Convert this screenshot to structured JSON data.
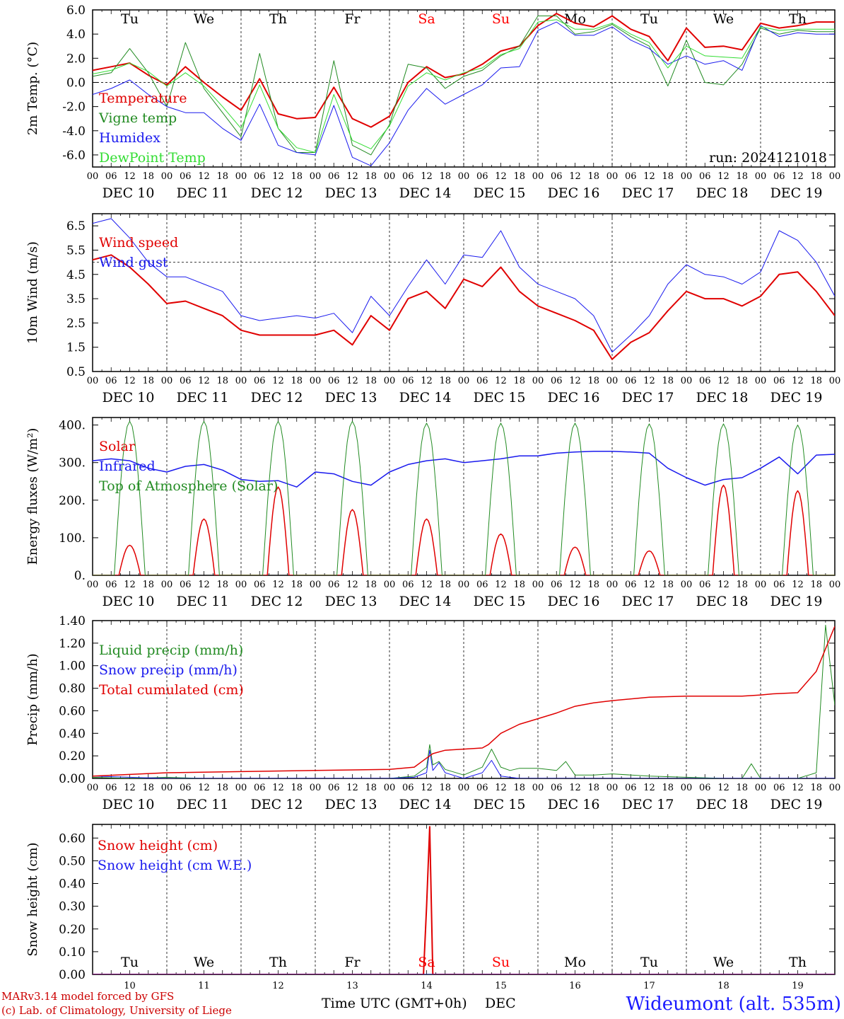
{
  "colors": {
    "weekday": "#000000",
    "weekend": "#ff0000",
    "red": "#e00000",
    "green": "#228b22",
    "blue": "#1a1aee",
    "lightgreen": "#33dd33"
  },
  "days": {
    "abbr": [
      "Tu",
      "We",
      "Th",
      "Fr",
      "Sa",
      "Su",
      "Mo",
      "Tu",
      "We",
      "Th"
    ],
    "weekend": [
      false,
      false,
      false,
      false,
      true,
      true,
      false,
      false,
      false,
      false
    ],
    "dates": [
      "DEC 10",
      "DEC 11",
      "DEC 12",
      "DEC 13",
      "DEC 14",
      "DEC 15",
      "DEC 16",
      "DEC 17",
      "DEC 18",
      "DEC 19"
    ],
    "numbers": [
      "10",
      "11",
      "12",
      "13",
      "14",
      "15",
      "16",
      "17",
      "18",
      "19"
    ],
    "hour_ticks": [
      "00",
      "06",
      "12",
      "18"
    ],
    "final_tick": "00"
  },
  "run_label": "run: 2024121018",
  "footer": {
    "model_line": "MARv3.14 model forced by GFS",
    "credit_line": "(c) Lab. of Climatology, University of Liege",
    "x_axis_title": "Time UTC (GMT+0h)",
    "x_axis_unit": "DEC",
    "station": "Wideumont (alt. 535m)"
  },
  "chart_data": [
    {
      "type": "line",
      "ylabel": "2m Temp. (°C)",
      "ylim": [
        -7,
        6
      ],
      "yticks": [
        -6,
        -4,
        -2,
        0,
        2,
        4,
        6
      ],
      "ytick_labels": [
        "-6.0",
        "-4.0",
        "-2.0",
        "0.0",
        "2.0",
        "4.0",
        "6.0"
      ],
      "ref_line": 0,
      "x_unit": "hours since DEC 10 00 UTC",
      "series": [
        {
          "name": "Temperature",
          "color": "#e00000",
          "width": 2,
          "x": [
            0,
            6,
            12,
            18,
            24,
            30,
            36,
            42,
            48,
            54,
            60,
            66,
            72,
            78,
            84,
            90,
            96,
            102,
            108,
            114,
            120,
            126,
            132,
            138,
            144,
            150,
            156,
            162,
            168,
            174,
            180,
            186,
            192,
            198,
            204,
            210,
            216,
            222,
            228,
            234,
            240
          ],
          "y": [
            1.0,
            1.3,
            1.6,
            0.6,
            -0.2,
            1.3,
            0.0,
            -1.2,
            -2.3,
            0.3,
            -2.6,
            -3.0,
            -2.9,
            -0.4,
            -3.0,
            -3.7,
            -2.8,
            0.0,
            1.3,
            0.4,
            0.7,
            1.5,
            2.6,
            3.0,
            4.7,
            5.7,
            4.9,
            4.6,
            5.5,
            4.4,
            3.8,
            1.8,
            4.5,
            2.9,
            3.0,
            2.7,
            4.9,
            4.5,
            4.7,
            5.0,
            5.0
          ]
        },
        {
          "name": "Vigne temp",
          "color": "#228b22",
          "width": 1,
          "x": [
            0,
            6,
            12,
            18,
            24,
            30,
            36,
            42,
            48,
            54,
            60,
            66,
            72,
            78,
            84,
            90,
            96,
            102,
            108,
            114,
            120,
            126,
            132,
            138,
            144,
            150,
            156,
            162,
            168,
            174,
            180,
            186,
            192,
            198,
            204,
            210,
            216,
            222,
            228,
            234,
            240
          ],
          "y": [
            0.5,
            0.8,
            2.8,
            0.8,
            -2.0,
            3.3,
            -0.5,
            -2.5,
            -4.5,
            2.4,
            -3.8,
            -5.8,
            -5.8,
            1.8,
            -5.2,
            -6.0,
            -3.5,
            1.5,
            1.2,
            -0.5,
            0.5,
            1.0,
            2.2,
            3.0,
            5.5,
            5.5,
            4.0,
            4.2,
            4.8,
            3.8,
            3.0,
            -0.3,
            3.5,
            0.0,
            -0.2,
            1.5,
            4.5,
            4.0,
            4.3,
            4.2,
            4.2
          ]
        },
        {
          "name": "Humidex",
          "color": "#1a1aee",
          "width": 1,
          "x": [
            0,
            6,
            12,
            18,
            24,
            30,
            36,
            42,
            48,
            54,
            60,
            66,
            72,
            78,
            84,
            90,
            96,
            102,
            108,
            114,
            120,
            126,
            132,
            138,
            144,
            150,
            156,
            162,
            168,
            174,
            180,
            186,
            192,
            198,
            204,
            210,
            216,
            222,
            228,
            234,
            240
          ],
          "y": [
            -1.0,
            -0.5,
            0.2,
            -1.0,
            -2.0,
            -2.5,
            -2.5,
            -3.8,
            -4.8,
            -1.8,
            -5.2,
            -5.8,
            -6.0,
            -1.9,
            -6.2,
            -6.9,
            -5.0,
            -2.3,
            -0.5,
            -1.8,
            -1.0,
            -0.2,
            1.2,
            1.3,
            4.3,
            5.0,
            3.9,
            3.9,
            4.6,
            3.5,
            2.8,
            1.5,
            2.2,
            1.5,
            1.8,
            1.0,
            4.7,
            3.8,
            4.1,
            4.0,
            4.0
          ]
        },
        {
          "name": "DewPoint Temp",
          "color": "#33dd33",
          "width": 1,
          "x": [
            0,
            6,
            12,
            18,
            24,
            30,
            36,
            42,
            48,
            54,
            60,
            66,
            72,
            78,
            84,
            90,
            96,
            102,
            108,
            114,
            120,
            126,
            132,
            138,
            144,
            150,
            156,
            162,
            168,
            174,
            180,
            186,
            192,
            198,
            204,
            210,
            216,
            222,
            228,
            234,
            240
          ],
          "y": [
            0.7,
            1.0,
            1.6,
            0.9,
            -0.3,
            0.8,
            -0.3,
            -2.0,
            -3.8,
            -0.2,
            -3.8,
            -5.4,
            -5.8,
            -1.0,
            -4.8,
            -5.5,
            -3.6,
            -0.3,
            0.8,
            0.2,
            0.8,
            1.2,
            2.3,
            2.8,
            5.0,
            5.2,
            4.4,
            4.4,
            4.9,
            4.0,
            3.3,
            1.2,
            3.0,
            2.2,
            2.1,
            2.0,
            4.6,
            4.3,
            4.4,
            4.4,
            4.4
          ]
        }
      ]
    },
    {
      "type": "line",
      "ylabel": "10m Wind (m/s)",
      "ylim": [
        0.5,
        7.0
      ],
      "yticks": [
        0.5,
        1.5,
        2.5,
        3.5,
        4.5,
        5.5,
        6.5
      ],
      "ytick_labels": [
        "0.5",
        "1.5",
        "2.5",
        "3.5",
        "4.5",
        "5.5",
        "6.5"
      ],
      "ref_line": 5.0,
      "x_unit": "hours since DEC 10 00 UTC",
      "series": [
        {
          "name": "Wind speed",
          "color": "#e00000",
          "width": 2,
          "x": [
            0,
            6,
            12,
            18,
            24,
            30,
            36,
            42,
            48,
            54,
            60,
            66,
            72,
            78,
            84,
            90,
            96,
            102,
            108,
            114,
            120,
            126,
            132,
            138,
            144,
            150,
            156,
            162,
            168,
            174,
            180,
            186,
            192,
            198,
            204,
            210,
            216,
            222,
            228,
            234,
            240
          ],
          "y": [
            5.1,
            5.3,
            4.8,
            4.1,
            3.3,
            3.4,
            3.1,
            2.8,
            2.2,
            2.0,
            2.0,
            2.0,
            2.0,
            2.2,
            1.6,
            2.8,
            2.2,
            3.5,
            3.8,
            3.1,
            4.3,
            4.0,
            4.8,
            3.8,
            3.2,
            2.9,
            2.6,
            2.2,
            1.0,
            1.7,
            2.1,
            3.0,
            3.8,
            3.5,
            3.5,
            3.2,
            3.6,
            4.5,
            4.6,
            3.8,
            2.8
          ]
        },
        {
          "name": "Wind gust",
          "color": "#1a1aee",
          "width": 1,
          "x": [
            0,
            6,
            12,
            18,
            24,
            30,
            36,
            42,
            48,
            54,
            60,
            66,
            72,
            78,
            84,
            90,
            96,
            102,
            108,
            114,
            120,
            126,
            132,
            138,
            144,
            150,
            156,
            162,
            168,
            174,
            180,
            186,
            192,
            198,
            204,
            210,
            216,
            222,
            228,
            234,
            240
          ],
          "y": [
            6.6,
            6.8,
            6.0,
            5.0,
            4.4,
            4.4,
            4.1,
            3.8,
            2.8,
            2.6,
            2.7,
            2.8,
            2.7,
            2.9,
            2.1,
            3.6,
            2.8,
            4.0,
            5.1,
            4.1,
            5.3,
            5.2,
            6.3,
            4.8,
            4.1,
            3.8,
            3.5,
            2.8,
            1.3,
            2.0,
            2.8,
            4.1,
            4.9,
            4.5,
            4.4,
            4.1,
            4.6,
            6.3,
            5.9,
            5.0,
            3.6
          ]
        }
      ]
    },
    {
      "type": "line",
      "ylabel": "Energy fluxes (W/m²)",
      "ylim": [
        0,
        420
      ],
      "yticks": [
        0,
        100,
        200,
        300,
        400
      ],
      "ytick_labels": [
        "0.",
        "100.",
        "200.",
        "300.",
        "400."
      ],
      "x_unit": "hours since DEC 10 00 UTC",
      "series": [
        {
          "name": "Solar",
          "color": "#e00000",
          "width": 1.5,
          "peaks": [
            80,
            150,
            235,
            175,
            150,
            110,
            75,
            65,
            240,
            225
          ]
        },
        {
          "name": "Infrared",
          "color": "#1a1aee",
          "width": 1.5,
          "x": [
            0,
            6,
            12,
            18,
            24,
            30,
            36,
            42,
            48,
            54,
            60,
            66,
            72,
            78,
            84,
            90,
            96,
            102,
            108,
            114,
            120,
            126,
            132,
            138,
            144,
            150,
            156,
            162,
            168,
            174,
            180,
            186,
            192,
            198,
            204,
            210,
            216,
            222,
            228,
            234,
            240
          ],
          "y": [
            305,
            310,
            305,
            285,
            275,
            290,
            295,
            280,
            255,
            250,
            252,
            235,
            275,
            270,
            250,
            240,
            275,
            295,
            305,
            310,
            300,
            305,
            310,
            318,
            318,
            325,
            328,
            330,
            330,
            328,
            325,
            285,
            260,
            240,
            255,
            260,
            285,
            315,
            270,
            320,
            322
          ]
        },
        {
          "name": "Top of Atmosphere (Solar)",
          "color": "#228b22",
          "width": 1,
          "peaks": [
            410,
            410,
            410,
            410,
            405,
            405,
            405,
            403,
            403,
            400
          ]
        }
      ]
    },
    {
      "type": "line",
      "ylabel": "Precip (mm/h)",
      "ylim": [
        0,
        1.4
      ],
      "yticks": [
        0,
        0.2,
        0.4,
        0.6,
        0.8,
        1.0,
        1.2,
        1.4
      ],
      "ytick_labels": [
        "0.00",
        "0.20",
        "0.40",
        "0.60",
        "0.80",
        "1.00",
        "1.20",
        "1.40"
      ],
      "x_unit": "hours since DEC 10 00 UTC",
      "series": [
        {
          "name": "Liquid precip (mm/h)",
          "color": "#228b22",
          "width": 1,
          "x": [
            0,
            12,
            24,
            36,
            48,
            60,
            72,
            84,
            96,
            104,
            108,
            109,
            110,
            112,
            114,
            120,
            126,
            129,
            132,
            135,
            138,
            144,
            150,
            153,
            156,
            162,
            168,
            180,
            192,
            204,
            210,
            213,
            216,
            228,
            234,
            237,
            240
          ],
          "y": [
            0.01,
            0.0,
            0.01,
            0.0,
            0.0,
            0.0,
            0.0,
            0.0,
            0.0,
            0.02,
            0.1,
            0.3,
            0.12,
            0.15,
            0.08,
            0.03,
            0.1,
            0.26,
            0.1,
            0.07,
            0.09,
            0.09,
            0.07,
            0.15,
            0.03,
            0.03,
            0.04,
            0.02,
            0.01,
            0.0,
            0.0,
            0.13,
            0.0,
            0.0,
            0.05,
            1.36,
            0.65
          ]
        },
        {
          "name": "Snow precip (mm/h)",
          "color": "#1a1aee",
          "width": 1,
          "x": [
            0,
            12,
            24,
            96,
            104,
            108,
            109,
            110,
            112,
            114,
            120,
            126,
            129,
            132,
            138,
            240
          ],
          "y": [
            0.02,
            0.01,
            0.0,
            0.0,
            0.01,
            0.05,
            0.25,
            0.07,
            0.14,
            0.05,
            0.0,
            0.05,
            0.16,
            0.02,
            0.0,
            0.0
          ]
        },
        {
          "name": "Total cumulated (cm)",
          "color": "#e00000",
          "width": 1.5,
          "x": [
            0,
            24,
            48,
            72,
            96,
            104,
            108,
            110,
            114,
            120,
            126,
            128,
            132,
            138,
            144,
            150,
            156,
            162,
            168,
            180,
            192,
            204,
            210,
            216,
            220,
            228,
            234,
            240
          ],
          "y": [
            0.02,
            0.05,
            0.06,
            0.07,
            0.08,
            0.1,
            0.18,
            0.22,
            0.25,
            0.26,
            0.27,
            0.3,
            0.4,
            0.48,
            0.53,
            0.58,
            0.64,
            0.67,
            0.69,
            0.72,
            0.73,
            0.73,
            0.73,
            0.74,
            0.75,
            0.76,
            0.95,
            1.35
          ]
        }
      ]
    },
    {
      "type": "line",
      "ylabel": "Snow height (cm)",
      "ylim": [
        0,
        0.66
      ],
      "yticks": [
        0,
        0.1,
        0.2,
        0.3,
        0.4,
        0.5,
        0.6
      ],
      "ytick_labels": [
        "0.00",
        "0.10",
        "0.20",
        "0.30",
        "0.40",
        "0.50",
        "0.60"
      ],
      "x_unit": "hours since DEC 10 00 UTC",
      "series": [
        {
          "name": "Snow height (cm)",
          "color": "#e00000",
          "width": 2,
          "x": [
            0,
            107,
            108,
            109,
            110,
            240
          ],
          "y": [
            0,
            0,
            0.3,
            0.65,
            0,
            0
          ]
        },
        {
          "name": "Snow height (cm W.E.)",
          "color": "#1a1aee",
          "width": 1,
          "x": [
            0,
            240
          ],
          "y": [
            0,
            0
          ]
        }
      ]
    }
  ]
}
